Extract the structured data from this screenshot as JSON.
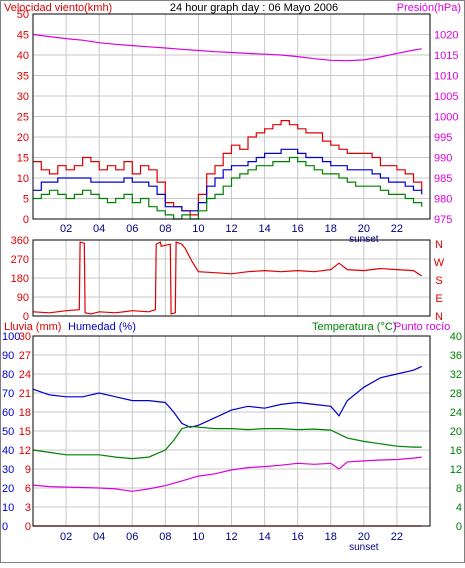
{
  "colors": {
    "red": "#dd0000",
    "blue": "#0000cc",
    "green": "#008000",
    "magenta": "#dd00dd",
    "grid": "#c8c8c8",
    "frame": "#000000"
  },
  "chart_data": [
    {
      "type": "line",
      "title": "24 hour graph day : 06 Mayo 2006",
      "ylabel": "Velocidad viento(kmh)",
      "ylabel_right": "Presión(hPa)",
      "xlim": [
        0,
        24
      ],
      "ylim": [
        0,
        50
      ],
      "ylim_right": [
        975,
        1025
      ],
      "x_ticks": [
        2,
        4,
        6,
        8,
        10,
        12,
        14,
        16,
        18,
        20,
        22
      ],
      "x_tick_labels": [
        "02",
        "04",
        "06",
        "08",
        "10",
        "12",
        "14",
        "16",
        "18",
        "20",
        "22"
      ],
      "y_ticks": [
        0,
        5,
        10,
        15,
        20,
        25,
        30,
        35,
        40,
        45,
        50
      ],
      "y_ticks_right": [
        975,
        980,
        985,
        990,
        995,
        1000,
        1005,
        1010,
        1015,
        1020
      ],
      "annotation": "sunset",
      "annotation_x": 20,
      "grid": true,
      "series": [
        {
          "axis": "right",
          "color": "#dd00dd",
          "x": [
            0,
            1,
            2,
            3,
            4,
            5,
            6,
            7,
            8,
            9,
            10,
            11,
            12,
            13,
            14,
            15,
            16,
            17,
            18,
            19,
            20,
            21,
            22,
            23,
            23.5
          ],
          "values": [
            1020,
            1019.5,
            1019,
            1018.6,
            1018,
            1017.6,
            1017.3,
            1017,
            1016.7,
            1016.4,
            1016.1,
            1015.8,
            1015.6,
            1015.4,
            1015.2,
            1015,
            1014.6,
            1014.1,
            1013.7,
            1013.6,
            1013.8,
            1014.5,
            1015.4,
            1016.2,
            1016.5
          ]
        },
        {
          "color": "#dd0000",
          "x": [
            0,
            0.5,
            1,
            1.5,
            2,
            2.5,
            3,
            3.5,
            4,
            4.5,
            5,
            5.5,
            6,
            6.5,
            7,
            7.5,
            8,
            8.5,
            9,
            9.5,
            10,
            10.5,
            11,
            11.5,
            12,
            12.5,
            13,
            13.5,
            14,
            14.5,
            15,
            15.5,
            16,
            16.5,
            17,
            17.5,
            18,
            18.5,
            19,
            19.5,
            20,
            20.5,
            21,
            21.5,
            22,
            22.5,
            23,
            23.5
          ],
          "values": [
            14,
            12,
            11,
            13,
            12,
            13,
            15,
            14,
            12,
            13,
            12,
            14,
            11,
            13,
            12,
            9,
            4,
            3,
            2,
            1,
            6,
            11,
            13,
            16,
            18,
            17,
            20,
            21,
            22,
            23,
            24,
            23,
            22,
            21,
            21,
            19,
            18,
            17,
            16,
            16,
            16,
            15,
            13,
            13,
            12,
            11,
            9,
            7
          ]
        },
        {
          "color": "#0000cc",
          "x": [
            0,
            0.5,
            1,
            1.5,
            2,
            2.5,
            3,
            3.5,
            4,
            4.5,
            5,
            5.5,
            6,
            6.5,
            7,
            7.5,
            8,
            8.5,
            9,
            9.5,
            10,
            10.5,
            11,
            11.5,
            12,
            12.5,
            13,
            13.5,
            14,
            14.5,
            15,
            15.5,
            16,
            16.5,
            17,
            17.5,
            18,
            18.5,
            19,
            19.5,
            20,
            20.5,
            21,
            21.5,
            22,
            22.5,
            23,
            23.5
          ],
          "values": [
            7,
            9,
            9,
            10,
            10,
            10,
            10,
            9,
            9,
            9,
            9,
            10,
            9,
            9,
            8,
            6,
            3,
            3,
            2,
            2,
            4,
            8,
            10,
            12,
            13,
            13,
            14,
            15,
            16,
            16,
            17,
            17,
            16,
            15,
            15,
            14,
            13,
            13,
            12,
            12,
            12,
            11,
            10,
            9,
            9,
            8,
            7,
            6
          ]
        },
        {
          "color": "#008000",
          "x": [
            0,
            0.5,
            1,
            1.5,
            2,
            2.5,
            3,
            3.5,
            4,
            4.5,
            5,
            5.5,
            6,
            6.5,
            7,
            7.5,
            8,
            8.5,
            9,
            9.5,
            10,
            10.5,
            11,
            11.5,
            12,
            12.5,
            13,
            13.5,
            14,
            14.5,
            15,
            15.5,
            16,
            16.5,
            17,
            17.5,
            18,
            18.5,
            19,
            19.5,
            20,
            20.5,
            21,
            21.5,
            22,
            22.5,
            23,
            23.5
          ],
          "values": [
            5,
            6,
            7,
            6,
            5,
            6,
            7,
            6,
            5,
            4,
            5,
            6,
            4,
            5,
            3,
            2,
            1,
            0,
            1,
            0,
            2,
            5,
            6,
            8,
            10,
            11,
            12,
            13,
            13,
            14,
            14,
            15,
            14,
            13,
            12,
            11,
            11,
            10,
            9,
            8,
            8,
            8,
            7,
            6,
            6,
            5,
            4,
            3
          ]
        }
      ]
    },
    {
      "type": "line",
      "xlim": [
        0,
        24
      ],
      "ylim": [
        0,
        360
      ],
      "y_ticks": [
        0,
        90,
        180,
        270,
        360
      ],
      "y_ticks_right_labels": [
        "N",
        "W",
        "S",
        "E",
        "N"
      ],
      "x_ticks": [
        2,
        4,
        6,
        8,
        10,
        12,
        14,
        16,
        18,
        20,
        22
      ],
      "grid": true,
      "series": [
        {
          "color": "#dd0000",
          "x": [
            0,
            1,
            2,
            2.8,
            2.85,
            3.1,
            3.15,
            3.5,
            4,
            5,
            6,
            7,
            7.4,
            7.45,
            7.7,
            7.75,
            8.3,
            8.35,
            8.6,
            8.65,
            9,
            9.2,
            9.6,
            10,
            11,
            12,
            13,
            14,
            15,
            16,
            17,
            18,
            18.5,
            19,
            20,
            21,
            22,
            23,
            23.5
          ],
          "values": [
            20,
            15,
            25,
            30,
            350,
            345,
            15,
            10,
            20,
            15,
            25,
            20,
            30,
            340,
            350,
            330,
            340,
            10,
            15,
            350,
            340,
            320,
            260,
            210,
            205,
            200,
            210,
            215,
            210,
            215,
            210,
            220,
            250,
            220,
            215,
            225,
            220,
            215,
            190
          ]
        }
      ]
    },
    {
      "type": "line",
      "ylabel": "Lluvia (mm)",
      "ylabel2": "Humedad (%)",
      "ylabel_right": "Temperatura (°C)",
      "ylabel_right2": "Punto rocío",
      "xlim": [
        0,
        24
      ],
      "ylim_humidity": [
        0,
        100
      ],
      "ylim_rain": [
        0,
        30
      ],
      "ylim_temperature": [
        0,
        40
      ],
      "y_ticks_humidity": [
        0,
        10,
        20,
        30,
        40,
        50,
        60,
        70,
        80,
        90,
        100
      ],
      "y_ticks_rain": [
        0,
        3,
        6,
        9,
        12,
        15,
        18,
        21,
        24,
        27,
        30
      ],
      "y_ticks_temperature": [
        0,
        4,
        8,
        12,
        16,
        20,
        24,
        28,
        32,
        36,
        40
      ],
      "x_ticks": [
        2,
        4,
        6,
        8,
        10,
        12,
        14,
        16,
        18,
        20,
        22
      ],
      "x_tick_labels": [
        "02",
        "04",
        "06",
        "08",
        "10",
        "12",
        "14",
        "16",
        "18",
        "20",
        "22"
      ],
      "annotation": "sunset",
      "annotation_x": 20,
      "grid": true,
      "series": [
        {
          "axis": "humidity",
          "color": "#0000cc",
          "x": [
            0,
            1,
            2,
            3,
            4,
            5,
            6,
            7,
            8,
            8.5,
            9,
            9.5,
            10,
            11,
            12,
            13,
            14,
            15,
            16,
            17,
            18,
            18.5,
            19,
            20,
            21,
            22,
            23,
            23.5
          ],
          "values": [
            72,
            69,
            68,
            68,
            70,
            68,
            66,
            66,
            65,
            60,
            54,
            52,
            53,
            57,
            61,
            63,
            62,
            64,
            65,
            64,
            63,
            58,
            66,
            73,
            78,
            80,
            82,
            84
          ]
        },
        {
          "axis": "temperature",
          "color": "#008000",
          "x": [
            0,
            1,
            2,
            3,
            4,
            5,
            6,
            7,
            8,
            8.5,
            9,
            9.5,
            10,
            11,
            12,
            13,
            14,
            15,
            16,
            17,
            18,
            19,
            20,
            21,
            22,
            23,
            23.5
          ],
          "values": [
            16,
            15.5,
            15,
            15,
            15,
            14.5,
            14.2,
            14.5,
            16,
            18,
            20.5,
            21,
            20.8,
            20.5,
            20.5,
            20.3,
            20.5,
            20.5,
            20.3,
            20.4,
            20.2,
            18.5,
            17.8,
            17.3,
            16.8,
            16.6,
            16.6
          ]
        },
        {
          "axis": "temperature",
          "color": "#dd00dd",
          "x": [
            0,
            1,
            2,
            3,
            4,
            5,
            6,
            7,
            8,
            9,
            10,
            11,
            12,
            13,
            14,
            15,
            16,
            17,
            18,
            18.5,
            19,
            20,
            21,
            22,
            23,
            23.5
          ],
          "values": [
            8.6,
            8.3,
            8.2,
            8.1,
            8.0,
            7.8,
            7.3,
            7.8,
            8.5,
            9.5,
            10.5,
            11.0,
            11.8,
            12.3,
            12.5,
            12.8,
            13.2,
            13.0,
            13.2,
            12.0,
            13.5,
            13.7,
            13.9,
            14.0,
            14.3,
            14.5
          ]
        },
        {
          "axis": "rain",
          "color": "#dd0000",
          "x": [
            0,
            23.5
          ],
          "values": [
            0,
            0
          ]
        }
      ]
    }
  ]
}
